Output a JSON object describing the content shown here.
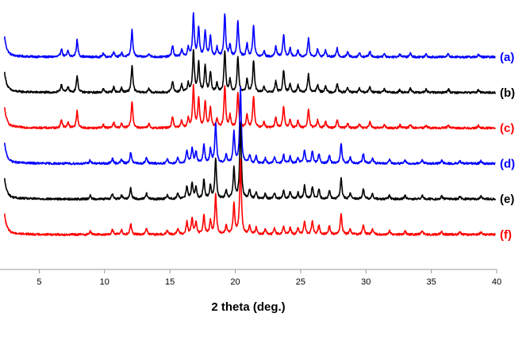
{
  "chart_data": {
    "type": "line",
    "title": "",
    "xlabel": "2 theta (deg.)",
    "ylabel": "",
    "xlim": [
      2,
      40
    ],
    "x_ticks": [
      5,
      10,
      15,
      20,
      25,
      30,
      35,
      40
    ],
    "x_tick_labels": [
      "5",
      "10",
      "15",
      "20",
      "25",
      "30",
      "35",
      "40"
    ],
    "y_ticks": [],
    "grid": false,
    "legend": "none",
    "series": [
      {
        "label": "(a)",
        "color": "#0000ff",
        "offset": 5,
        "pattern": "A"
      },
      {
        "label": "(b)",
        "color": "#000000",
        "offset": 4,
        "pattern": "A"
      },
      {
        "label": "(c)",
        "color": "#ff0000",
        "offset": 3,
        "pattern": "A"
      },
      {
        "label": "(d)",
        "color": "#0000ff",
        "offset": 2,
        "pattern": "B"
      },
      {
        "label": "(e)",
        "color": "#000000",
        "offset": 1,
        "pattern": "B"
      },
      {
        "label": "(f)",
        "color": "#ff0000",
        "offset": 0,
        "pattern": "B"
      }
    ],
    "peak_patterns": {
      "A": [
        [
          6.7,
          0.2
        ],
        [
          7.2,
          0.14
        ],
        [
          7.9,
          0.4
        ],
        [
          9.9,
          0.08
        ],
        [
          10.7,
          0.13
        ],
        [
          11.3,
          0.1
        ],
        [
          12.1,
          0.64
        ],
        [
          13.4,
          0.09
        ],
        [
          15.2,
          0.27
        ],
        [
          15.9,
          0.18
        ],
        [
          16.4,
          0.22
        ],
        [
          16.8,
          1.0
        ],
        [
          17.2,
          0.7
        ],
        [
          17.7,
          0.62
        ],
        [
          18.1,
          0.48
        ],
        [
          18.6,
          0.22
        ],
        [
          19.2,
          0.99
        ],
        [
          19.6,
          0.28
        ],
        [
          20.2,
          0.85
        ],
        [
          20.9,
          0.3
        ],
        [
          21.4,
          0.76
        ],
        [
          22.2,
          0.14
        ],
        [
          23.1,
          0.26
        ],
        [
          23.7,
          0.52
        ],
        [
          24.2,
          0.2
        ],
        [
          24.8,
          0.17
        ],
        [
          25.6,
          0.43
        ],
        [
          26.3,
          0.19
        ],
        [
          26.9,
          0.16
        ],
        [
          27.8,
          0.2
        ],
        [
          28.6,
          0.12
        ],
        [
          29.5,
          0.1
        ],
        [
          30.3,
          0.14
        ],
        [
          31.4,
          0.08
        ],
        [
          32.6,
          0.07
        ],
        [
          33.4,
          0.09
        ],
        [
          34.6,
          0.07
        ],
        [
          36.3,
          0.08
        ],
        [
          38.6,
          0.06
        ]
      ],
      "B": [
        [
          8.9,
          0.08
        ],
        [
          10.6,
          0.12
        ],
        [
          11.3,
          0.1
        ],
        [
          12.0,
          0.26
        ],
        [
          13.2,
          0.14
        ],
        [
          14.8,
          0.1
        ],
        [
          15.6,
          0.14
        ],
        [
          16.3,
          0.3
        ],
        [
          16.7,
          0.38
        ],
        [
          17.0,
          0.28
        ],
        [
          17.6,
          0.46
        ],
        [
          18.1,
          0.32
        ],
        [
          18.5,
          0.96
        ],
        [
          19.3,
          0.2
        ],
        [
          19.9,
          0.74
        ],
        [
          20.4,
          1.78
        ],
        [
          21.1,
          0.2
        ],
        [
          21.6,
          0.16
        ],
        [
          22.3,
          0.12
        ],
        [
          23.0,
          0.14
        ],
        [
          23.7,
          0.2
        ],
        [
          24.2,
          0.16
        ],
        [
          24.8,
          0.14
        ],
        [
          25.3,
          0.32
        ],
        [
          25.9,
          0.3
        ],
        [
          26.4,
          0.22
        ],
        [
          27.2,
          0.2
        ],
        [
          28.1,
          0.48
        ],
        [
          28.8,
          0.14
        ],
        [
          29.8,
          0.24
        ],
        [
          30.5,
          0.12
        ],
        [
          31.8,
          0.09
        ],
        [
          33.0,
          0.08
        ],
        [
          34.3,
          0.1
        ],
        [
          35.8,
          0.07
        ],
        [
          37.2,
          0.06
        ],
        [
          38.8,
          0.06
        ]
      ]
    }
  }
}
